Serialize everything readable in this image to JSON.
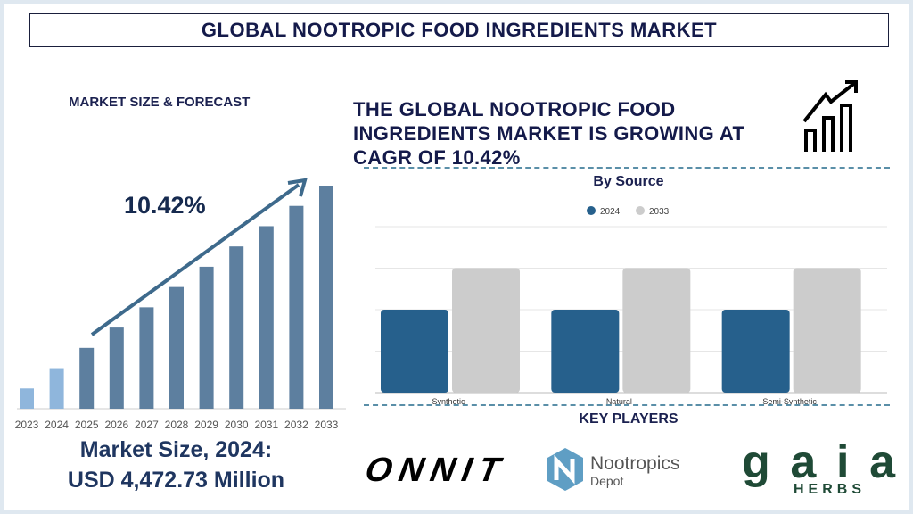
{
  "title": "GLOBAL NOOTROPIC FOOD INGREDIENTS MARKET",
  "left": {
    "section_title": "MARKET SIZE & FORECAST",
    "cagr_label": "10.42%",
    "market_size_line1": "Market Size, 2024:",
    "market_size_line2": "USD 4,472.73 Million"
  },
  "headline": "THE GLOBAL NOOTROPIC FOOD INGREDIENTS MARKET IS GROWING AT CAGR OF 10.42%",
  "icon": "growth-chart-arrow-icon",
  "key_players": {
    "title": "KEY PLAYERS",
    "logos": [
      "ONNIT",
      "Nootropics Depot",
      "gaia HERBS"
    ]
  },
  "colors": {
    "historic": "#8fb6dc",
    "forecast": "#5d7f9f",
    "arrow": "#3e6a8c",
    "series_2024": "#26608c",
    "series_2033": "#cccccc",
    "text": "#141a4a"
  },
  "chart_data": [
    {
      "type": "bar",
      "title": "",
      "categories": [
        "2023",
        "2024",
        "2025",
        "2026",
        "2027",
        "2028",
        "2029",
        "2030",
        "2031",
        "2032",
        "2033"
      ],
      "values": [
        1,
        2,
        3,
        4,
        5,
        6,
        7,
        8,
        9,
        10,
        11
      ],
      "ylim": [
        0,
        11
      ],
      "grid": false,
      "note_values": "relative heights, no axis printed",
      "annotation": "10.42%"
    },
    {
      "type": "bar",
      "title": "By Source",
      "categories": [
        "Synthetic",
        "Natural",
        "Semi-Synthetic"
      ],
      "series": [
        {
          "name": "2024",
          "values": [
            2,
            2,
            2
          ]
        },
        {
          "name": "2033",
          "values": [
            3,
            3,
            3
          ]
        }
      ],
      "ylim": [
        0,
        4
      ],
      "grid": true,
      "legend": "top-center"
    }
  ]
}
